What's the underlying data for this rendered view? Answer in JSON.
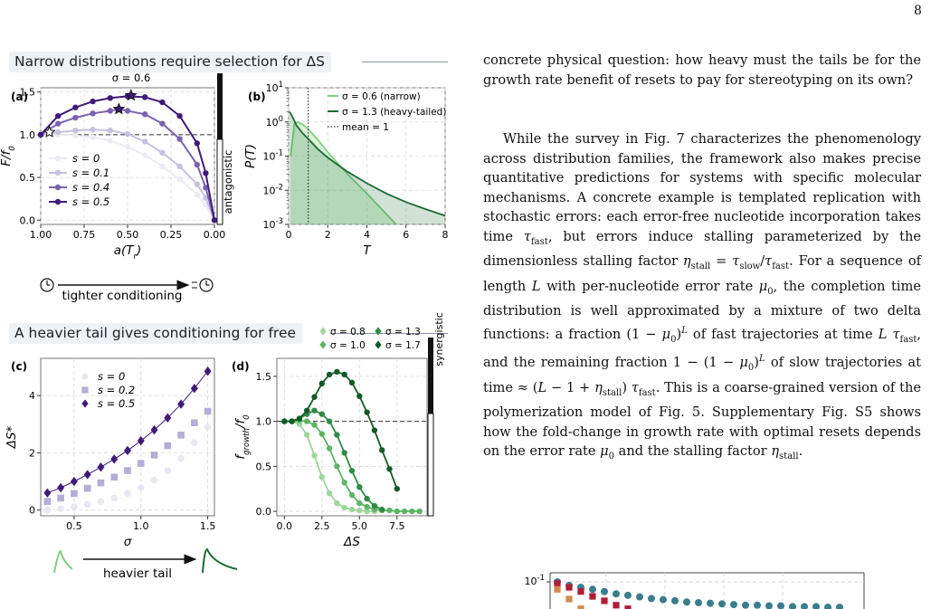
{
  "page_number": "8",
  "sections": {
    "narrow_title": "Narrow distributions require selection for ΔS",
    "heavy_title": "A heavier tail gives conditioning for free"
  },
  "paragraphs": {
    "p1": "concrete physical question: how heavy must the tails be for the growth rate benefit of resets to pay for stereotyping on its own?",
    "p2": "While the survey in Fig. 7 characterizes the phenomenology across distribution families, the framework also makes precise quantitative predictions for systems with specific molecular mechanisms. A concrete example is templated replication with stochastic errors: each error-free nucleotide incorporation takes time τ_fast, but errors induce stalling parameterized by the dimensionless stalling factor η_stall = τ_slow/τ_fast. For a sequence of length L with per-nucleotide error rate μ0, the completion time distribution is well approximated by a mixture of two delta functions: a fraction (1 − μ0)^L of fast trajectories at time L τ_fast, and the remaining fraction 1 − (1 − μ0)^L of slow trajectories at time ≈ (L − 1 + η_stall) τ_fast. This is a coarse-grained version of the polymerization model of Fig. 5. Supplementary Fig. S5 shows how the fold-change in growth rate with optimal resets depends on the error rate μ0 and the stalling factor η_stall."
  },
  "annotations": {
    "tighter": "tighter conditioning",
    "heavier": "heavier tail",
    "antagonistic": "antagonistic",
    "synergistic": "synergistic"
  },
  "colors": {
    "purple": "#3f1c7a",
    "green_dark": "#1a6b32",
    "green_light": "#7fcf7f",
    "teal": "#3a7d8c",
    "red": "#b01c35"
  },
  "chart_data": [
    {
      "panel": "(a)",
      "type": "line",
      "title": "σ = 0.6",
      "xlabel": "a(T_r)",
      "ylabel": "F/f_0",
      "xlim": [
        1.0,
        0.0
      ],
      "ylim": [
        -0.05,
        1.55
      ],
      "xticks": [
        "1.00",
        "0.75",
        "0.50",
        "0.25",
        "0.00"
      ],
      "yticks": [
        "0.0",
        "0.5",
        "1.0",
        "1.5"
      ],
      "reference_line_y": 1.0,
      "legend": "lower-left",
      "series": [
        {
          "name": "s = 0",
          "color": "#ecebf4",
          "x": [
            1.0,
            0.9,
            0.8,
            0.7,
            0.6,
            0.5,
            0.4,
            0.3,
            0.2,
            0.1,
            0.05,
            0.0
          ],
          "y": [
            1.0,
            1.0,
            0.99,
            0.97,
            0.93,
            0.86,
            0.76,
            0.63,
            0.48,
            0.3,
            0.18,
            0.0
          ]
        },
        {
          "name": "s = 0.1",
          "color": "#c7c0de",
          "x": [
            1.0,
            0.9,
            0.8,
            0.7,
            0.6,
            0.5,
            0.4,
            0.3,
            0.2,
            0.1,
            0.05,
            0.0
          ],
          "y": [
            1.0,
            1.03,
            1.05,
            1.06,
            1.05,
            1.01,
            0.92,
            0.79,
            0.63,
            0.42,
            0.26,
            0.0
          ]
        },
        {
          "name": "s = 0.4",
          "color": "#7b62b0",
          "x": [
            1.0,
            0.9,
            0.8,
            0.7,
            0.6,
            0.55,
            0.5,
            0.4,
            0.3,
            0.2,
            0.1,
            0.05,
            0.0
          ],
          "y": [
            1.0,
            1.13,
            1.2,
            1.25,
            1.28,
            1.3,
            1.28,
            1.24,
            1.13,
            0.95,
            0.65,
            0.38,
            0.0
          ]
        },
        {
          "name": "s = 0.5",
          "color": "#3f1c7a",
          "x": [
            1.0,
            0.9,
            0.8,
            0.7,
            0.6,
            0.5,
            0.4,
            0.3,
            0.2,
            0.1,
            0.05,
            0.0
          ],
          "y": [
            1.0,
            1.22,
            1.32,
            1.39,
            1.43,
            1.45,
            1.44,
            1.38,
            1.22,
            0.9,
            0.55,
            0.0
          ]
        }
      ],
      "optimum_markers": [
        {
          "x": 0.95,
          "y": 1.03
        },
        {
          "x": 0.55,
          "y": 1.3
        },
        {
          "x": 0.48,
          "y": 1.46
        }
      ]
    },
    {
      "panel": "(b)",
      "type": "area",
      "xlabel": "T",
      "ylabel": "P(T)",
      "yscale": "log",
      "xlim": [
        0,
        8
      ],
      "ylim": [
        0.001,
        10
      ],
      "xticks": [
        "0",
        "2",
        "4",
        "6",
        "8"
      ],
      "yticks": [
        "10^-3",
        "10^-2",
        "10^-1",
        "10^0",
        "10^1"
      ],
      "vline_x": 1.0,
      "legend": "top-right",
      "series": [
        {
          "name": "σ = 0.6 (narrow)",
          "color": "#7fcf7f",
          "x": [
            0.1,
            0.3,
            0.5,
            0.8,
            1.0,
            1.5,
            2.0,
            3.0,
            4.0,
            5.0,
            5.5
          ],
          "y": [
            0.1,
            0.9,
            1.0,
            0.78,
            0.62,
            0.3,
            0.13,
            0.03,
            0.008,
            0.002,
            0.001
          ]
        },
        {
          "name": "σ = 1.3 (heavy-tailed)",
          "color": "#1a6b32",
          "x": [
            0.05,
            0.2,
            0.4,
            0.7,
            1.0,
            1.5,
            2.0,
            3.0,
            4.0,
            5.0,
            6.0,
            7.0,
            8.0
          ],
          "y": [
            2.0,
            1.4,
            0.8,
            0.48,
            0.32,
            0.16,
            0.09,
            0.035,
            0.016,
            0.008,
            0.0045,
            0.0028,
            0.0018
          ]
        }
      ],
      "vline_label": "mean = 1"
    },
    {
      "panel": "(c)",
      "type": "scatter",
      "xlabel": "σ",
      "ylabel": "ΔS*",
      "xlim": [
        0.25,
        1.55
      ],
      "ylim": [
        -0.2,
        5.3
      ],
      "xticks": [
        "0.5",
        "1.0",
        "1.5"
      ],
      "yticks": [
        "0",
        "2",
        "4"
      ],
      "legend": "top-left",
      "series": [
        {
          "name": "s = 0",
          "color": "#e8e8f2",
          "x": [
            0.3,
            0.4,
            0.5,
            0.6,
            0.7,
            0.8,
            0.9,
            1.0,
            1.1,
            1.2,
            1.3,
            1.4,
            1.5
          ],
          "y": [
            0.0,
            0.05,
            0.12,
            0.2,
            0.3,
            0.42,
            0.58,
            0.78,
            1.05,
            1.38,
            1.8,
            2.35,
            2.9
          ]
        },
        {
          "name": "s = 0.2",
          "color": "#b4aed6",
          "x": [
            0.3,
            0.4,
            0.5,
            0.6,
            0.7,
            0.8,
            0.9,
            1.0,
            1.1,
            1.2,
            1.3,
            1.4,
            1.5
          ],
          "y": [
            0.3,
            0.42,
            0.58,
            0.76,
            0.95,
            1.15,
            1.38,
            1.63,
            1.92,
            2.25,
            2.62,
            3.05,
            3.45
          ]
        },
        {
          "name": "s = 0.5",
          "color": "#3f1c7a",
          "x": [
            0.3,
            0.4,
            0.5,
            0.6,
            0.7,
            0.8,
            0.9,
            1.0,
            1.1,
            1.2,
            1.3,
            1.4,
            1.5
          ],
          "y": [
            0.6,
            0.78,
            1.0,
            1.24,
            1.5,
            1.78,
            2.08,
            2.42,
            2.8,
            3.22,
            3.7,
            4.25,
            4.85
          ]
        }
      ]
    },
    {
      "panel": "(d)",
      "type": "line",
      "xlabel": "ΔS",
      "ylabel": "f_growth/f_0",
      "xlim": [
        -0.5,
        9.5
      ],
      "ylim": [
        -0.05,
        1.7
      ],
      "xticks": [
        "0.0",
        "2.5",
        "5.0",
        "7.5"
      ],
      "yticks": [
        "0.0",
        "0.5",
        "1.0",
        "1.5"
      ],
      "reference_line_y": 1.0,
      "legend": "above",
      "series": [
        {
          "name": "σ = 0.8",
          "color": "#9dd69a",
          "x": [
            0.0,
            0.5,
            1.0,
            1.5,
            2.0,
            2.5,
            3.0,
            3.5,
            4.0,
            4.5,
            5.0,
            5.5,
            6.0
          ],
          "y": [
            1.0,
            1.0,
            0.97,
            0.85,
            0.62,
            0.38,
            0.2,
            0.09,
            0.04,
            0.02,
            0.01,
            0.0,
            0.0
          ]
        },
        {
          "name": "σ = 1.0",
          "color": "#5cb564",
          "x": [
            0.0,
            0.5,
            1.0,
            1.5,
            2.0,
            2.5,
            3.0,
            3.5,
            4.0,
            4.5,
            5.0,
            5.5,
            6.0,
            6.5,
            7.0,
            7.5,
            8.0,
            8.5,
            9.0
          ],
          "y": [
            1.0,
            1.0,
            1.01,
            1.0,
            0.96,
            0.86,
            0.7,
            0.5,
            0.32,
            0.18,
            0.09,
            0.05,
            0.02,
            0.01,
            0.01,
            0.0,
            0.0,
            0.0,
            0.0
          ]
        },
        {
          "name": "σ = 1.3",
          "color": "#2e8b45",
          "x": [
            0.0,
            0.5,
            1.0,
            1.5,
            2.0,
            2.5,
            3.0,
            3.5,
            4.0,
            4.5,
            5.0,
            5.5,
            6.0,
            6.5
          ],
          "y": [
            1.0,
            1.0,
            1.03,
            1.08,
            1.12,
            1.08,
            1.0,
            0.85,
            0.65,
            0.45,
            0.27,
            0.14,
            0.06,
            0.02
          ]
        },
        {
          "name": "σ = 1.7",
          "color": "#125a28",
          "x": [
            0.0,
            0.5,
            1.0,
            1.5,
            2.0,
            2.5,
            3.0,
            3.5,
            4.0,
            4.5,
            5.0,
            5.5,
            6.0,
            6.5,
            7.0,
            7.5
          ],
          "y": [
            1.0,
            1.0,
            1.03,
            1.12,
            1.27,
            1.42,
            1.52,
            1.55,
            1.52,
            1.43,
            1.28,
            1.1,
            0.9,
            0.68,
            0.47,
            0.25
          ]
        }
      ]
    },
    {
      "panel": "partial",
      "type": "scatter",
      "yticks": [
        "10^-1"
      ],
      "series": [
        {
          "color": "#3a7d8c",
          "x": [
            0,
            1,
            2,
            3,
            4,
            5,
            6,
            7,
            8,
            9,
            10,
            11,
            12,
            13,
            14,
            15,
            16,
            17,
            18,
            19,
            20,
            21,
            22,
            23,
            24
          ],
          "y": [
            0.1,
            0.09,
            0.085,
            0.08,
            0.075,
            0.07,
            0.067,
            0.064,
            0.061,
            0.059,
            0.057,
            0.055,
            0.054,
            0.053,
            0.052,
            0.051,
            0.05,
            0.05,
            0.049,
            0.049,
            0.048,
            0.048,
            0.048,
            0.047,
            0.047
          ]
        },
        {
          "color": "#b01c35",
          "x": [
            0,
            1,
            2,
            3,
            4,
            5,
            6,
            7
          ],
          "y": [
            0.095,
            0.085,
            0.075,
            0.065,
            0.057,
            0.05,
            0.045,
            0.042
          ]
        },
        {
          "color": "#d08c4a",
          "x": [
            0,
            1,
            2
          ],
          "y": [
            0.08,
            0.06,
            0.045
          ]
        }
      ]
    }
  ]
}
